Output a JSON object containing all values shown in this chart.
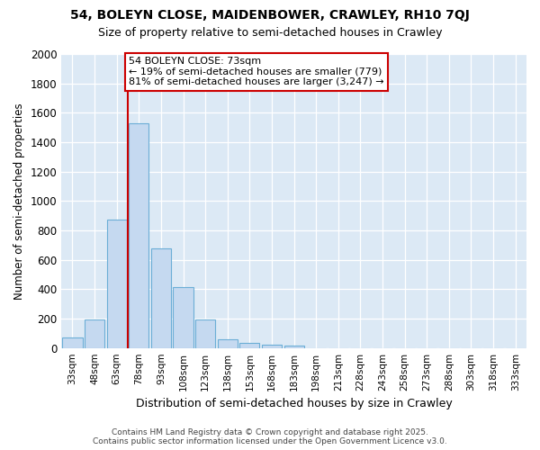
{
  "title1": "54, BOLEYN CLOSE, MAIDENBOWER, CRAWLEY, RH10 7QJ",
  "title2": "Size of property relative to semi-detached houses in Crawley",
  "xlabel": "Distribution of semi-detached houses by size in Crawley",
  "ylabel": "Number of semi-detached properties",
  "categories": [
    "33sqm",
    "48sqm",
    "63sqm",
    "78sqm",
    "93sqm",
    "108sqm",
    "123sqm",
    "138sqm",
    "153sqm",
    "168sqm",
    "183sqm",
    "198sqm",
    "213sqm",
    "228sqm",
    "243sqm",
    "258sqm",
    "273sqm",
    "288sqm",
    "303sqm",
    "318sqm",
    "333sqm"
  ],
  "values": [
    70,
    195,
    875,
    1530,
    680,
    415,
    195,
    60,
    35,
    20,
    15,
    0,
    0,
    0,
    0,
    0,
    0,
    0,
    0,
    0,
    0
  ],
  "bar_color": "#c5d9f0",
  "bar_edge_color": "#6baed6",
  "vline_color": "#cc0000",
  "vline_pos": 2.5,
  "annotation_text": "54 BOLEYN CLOSE: 73sqm\n← 19% of semi-detached houses are smaller (779)\n81% of semi-detached houses are larger (3,247) →",
  "annotation_box_facecolor": "#ffffff",
  "annotation_box_edgecolor": "#cc0000",
  "ylim": [
    0,
    2000
  ],
  "yticks": [
    0,
    200,
    400,
    600,
    800,
    1000,
    1200,
    1400,
    1600,
    1800,
    2000
  ],
  "plot_bg_color": "#dce9f5",
  "fig_bg_color": "#ffffff",
  "footer1": "Contains HM Land Registry data © Crown copyright and database right 2025.",
  "footer2": "Contains public sector information licensed under the Open Government Licence v3.0."
}
